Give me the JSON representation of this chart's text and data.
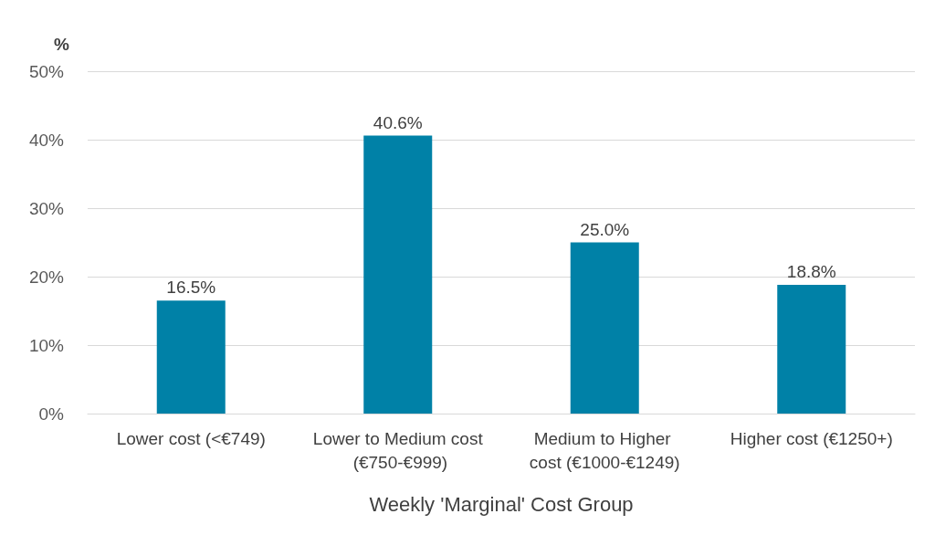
{
  "chart_data": {
    "type": "bar",
    "ylabel": "%",
    "xlabel": "Weekly 'Marginal' Cost Group",
    "categories": [
      "Lower cost (<€749)",
      "Lower to Medium cost (€750-€999)",
      "Medium to Higher cost (€1000-€1249)",
      "Higher cost (€1250+)"
    ],
    "values": [
      16.5,
      40.6,
      25.0,
      18.8
    ],
    "value_labels": [
      "16.5%",
      "40.6%",
      "25.0%",
      "18.8%"
    ],
    "color": "#0081a7",
    "ylim": [
      0,
      50
    ],
    "yticks": [
      {
        "value": 0,
        "label": "0%"
      },
      {
        "value": 10,
        "label": "10%"
      },
      {
        "value": 20,
        "label": "20%"
      },
      {
        "value": 30,
        "label": "30%"
      },
      {
        "value": 40,
        "label": "40%"
      },
      {
        "value": 50,
        "label": "50%"
      }
    ],
    "grid": "y"
  }
}
